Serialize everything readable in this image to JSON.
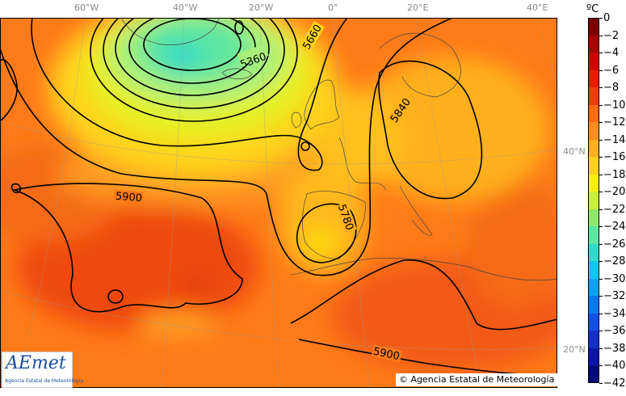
{
  "map": {
    "longitude_labels": [
      "60°W",
      "40°W",
      "20°W",
      "0°",
      "20°E",
      "40°E"
    ],
    "latitude_labels": [
      "40°N",
      "20°N"
    ],
    "contour_labels": [
      "5360",
      "5660",
      "5840",
      "5900",
      "5780",
      "5900"
    ],
    "colors": {
      "dark_red": "#d22000",
      "red": "#ef3b0a",
      "orange": "#ff6a12",
      "light_orange": "#ff8c1f",
      "yellow_orange": "#ffb81c",
      "yellow": "#ffe100",
      "light_green": "#a8f07a",
      "green": "#5ce6a0",
      "cyan": "#1fd6d0"
    }
  },
  "colorbar": {
    "unit": "ºC",
    "ticks": [
      "0",
      "−2",
      "−4",
      "−6",
      "−8",
      "−10",
      "−12",
      "−14",
      "−16",
      "−18",
      "−20",
      "−22",
      "−24",
      "−26",
      "−28",
      "−30",
      "−32",
      "−34",
      "−36",
      "−38",
      "−40",
      "−42"
    ],
    "colors": [
      "#7a0000",
      "#a80000",
      "#d40000",
      "#ee1a00",
      "#f03c0a",
      "#ff6a12",
      "#ff8c1f",
      "#ffb01c",
      "#ffd21a",
      "#f5f000",
      "#c8f03a",
      "#8ee86e",
      "#5ce6a0",
      "#2cdcc8",
      "#0fc8ee",
      "#0aa2f0",
      "#0a78ee",
      "#1450e6",
      "#1430c8",
      "#0a14a8",
      "#000a78"
    ]
  },
  "logo": {
    "wordmark": "AEmet",
    "subtitle": "Agencia Estatal de Meteorología"
  },
  "copyright": "© Agencia Estatal de Meteorología"
}
